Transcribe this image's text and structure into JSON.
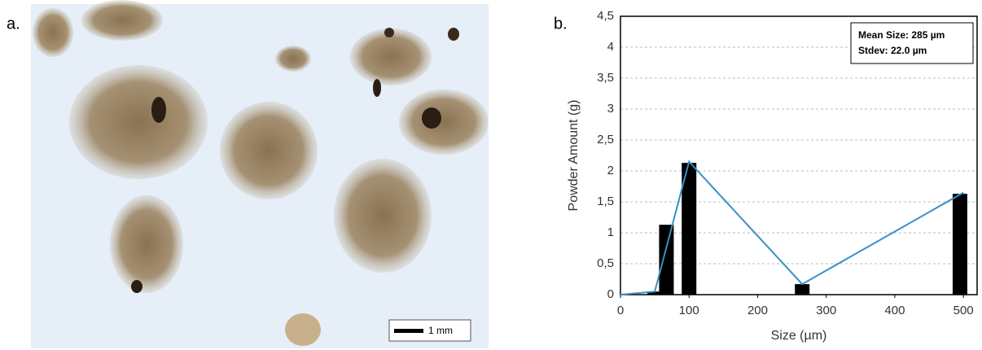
{
  "panel_a": {
    "label": "a.",
    "scale_bar": "1 mm"
  },
  "chart_data": {
    "type": "bar-line",
    "panel_label": "b.",
    "xlabel": "Size (µm)",
    "ylabel": "Powder Amount (g)",
    "annotation": [
      "Mean Size: 285 µm",
      "Stdev: 22.0 µm"
    ],
    "bars": {
      "x": [
        50,
        67,
        100,
        265,
        495
      ],
      "values": [
        0.05,
        1.13,
        2.13,
        0.17,
        1.63
      ],
      "color": "#000000"
    },
    "line": {
      "x": [
        0,
        50,
        100,
        265,
        500
      ],
      "values": [
        0,
        0.05,
        2.15,
        0.17,
        1.65
      ],
      "color": "#3a8fc8"
    },
    "xlim": [
      0,
      520
    ],
    "xticks": [
      0,
      100,
      200,
      300,
      400,
      500
    ],
    "ylim": [
      0,
      4.5
    ],
    "yticks": [
      0,
      {
        "value": 0.5,
        "label": "0,5"
      },
      1,
      {
        "value": 1.5,
        "label": "1,5"
      },
      2,
      {
        "value": 2.5,
        "label": "2,5"
      },
      3,
      {
        "value": 3.5,
        "label": "3,5"
      },
      4,
      {
        "value": 4.5,
        "label": "4,5"
      }
    ],
    "grid": true
  }
}
